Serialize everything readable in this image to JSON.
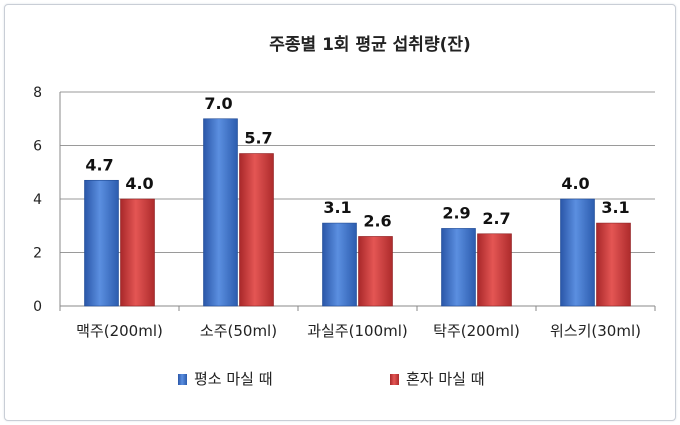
{
  "chart_data": {
    "type": "bar",
    "title": "주종별 1회 평균 섭취량(잔)",
    "xlabel": "",
    "ylabel": "",
    "categories": [
      "맥주(200ml)",
      "소주(50ml)",
      "과실주(100ml)",
      "탁주(200ml)",
      "위스키(30ml)"
    ],
    "series": [
      {
        "name": "평소 마실 때",
        "values": [
          4.7,
          7.0,
          3.1,
          2.9,
          4.0
        ],
        "color": "#3a6fc4"
      },
      {
        "name": "혼자 마실 때",
        "values": [
          4.0,
          5.7,
          2.6,
          2.7,
          3.1
        ],
        "color": "#cc3a38"
      }
    ],
    "ylim": [
      0,
      8
    ],
    "yticks": [
      0,
      2,
      4,
      6,
      8
    ],
    "grid": true,
    "legend": "bottom"
  }
}
